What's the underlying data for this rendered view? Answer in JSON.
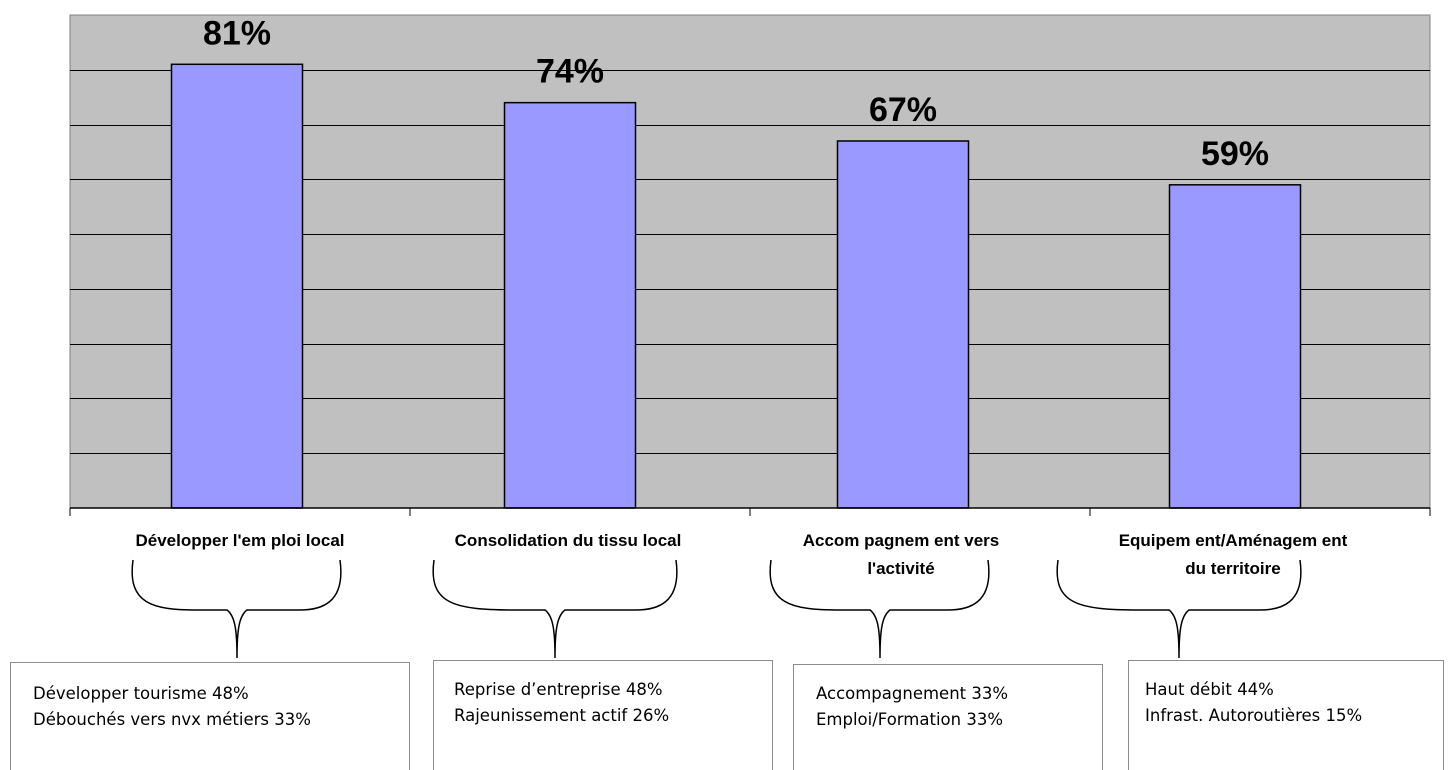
{
  "chart_data": {
    "type": "bar",
    "categories": [
      [
        "Développer l'em ploi local"
      ],
      [
        "Consolidation du tissu local"
      ],
      [
        "Accom pagnem ent vers",
        "l'activité"
      ],
      [
        "Equipem ent/Aménagem ent",
        "du territoire"
      ]
    ],
    "values": [
      81,
      74,
      67,
      59
    ],
    "data_labels": [
      "81%",
      "74%",
      "67%",
      "59%"
    ],
    "ylim": [
      0,
      90
    ],
    "grid": true,
    "colors": {
      "plot_bg": "#c0c0c0",
      "bar_fill": "#9999ff",
      "bar_stroke": "#000000",
      "gridline": "#000000"
    }
  },
  "details": [
    {
      "lines": [
        "Développer tourisme 48%",
        "Débouchés vers nvx métiers 33%"
      ]
    },
    {
      "lines": [
        "Reprise d’entreprise 48%",
        "Rajeunissement actif 26%"
      ]
    },
    {
      "lines": [
        "Accompagnement 33%",
        "Emploi/Formation 33%"
      ]
    },
    {
      "lines": [
        "Haut débit 44%",
        "Infrast. Autoroutières 15%"
      ]
    }
  ]
}
